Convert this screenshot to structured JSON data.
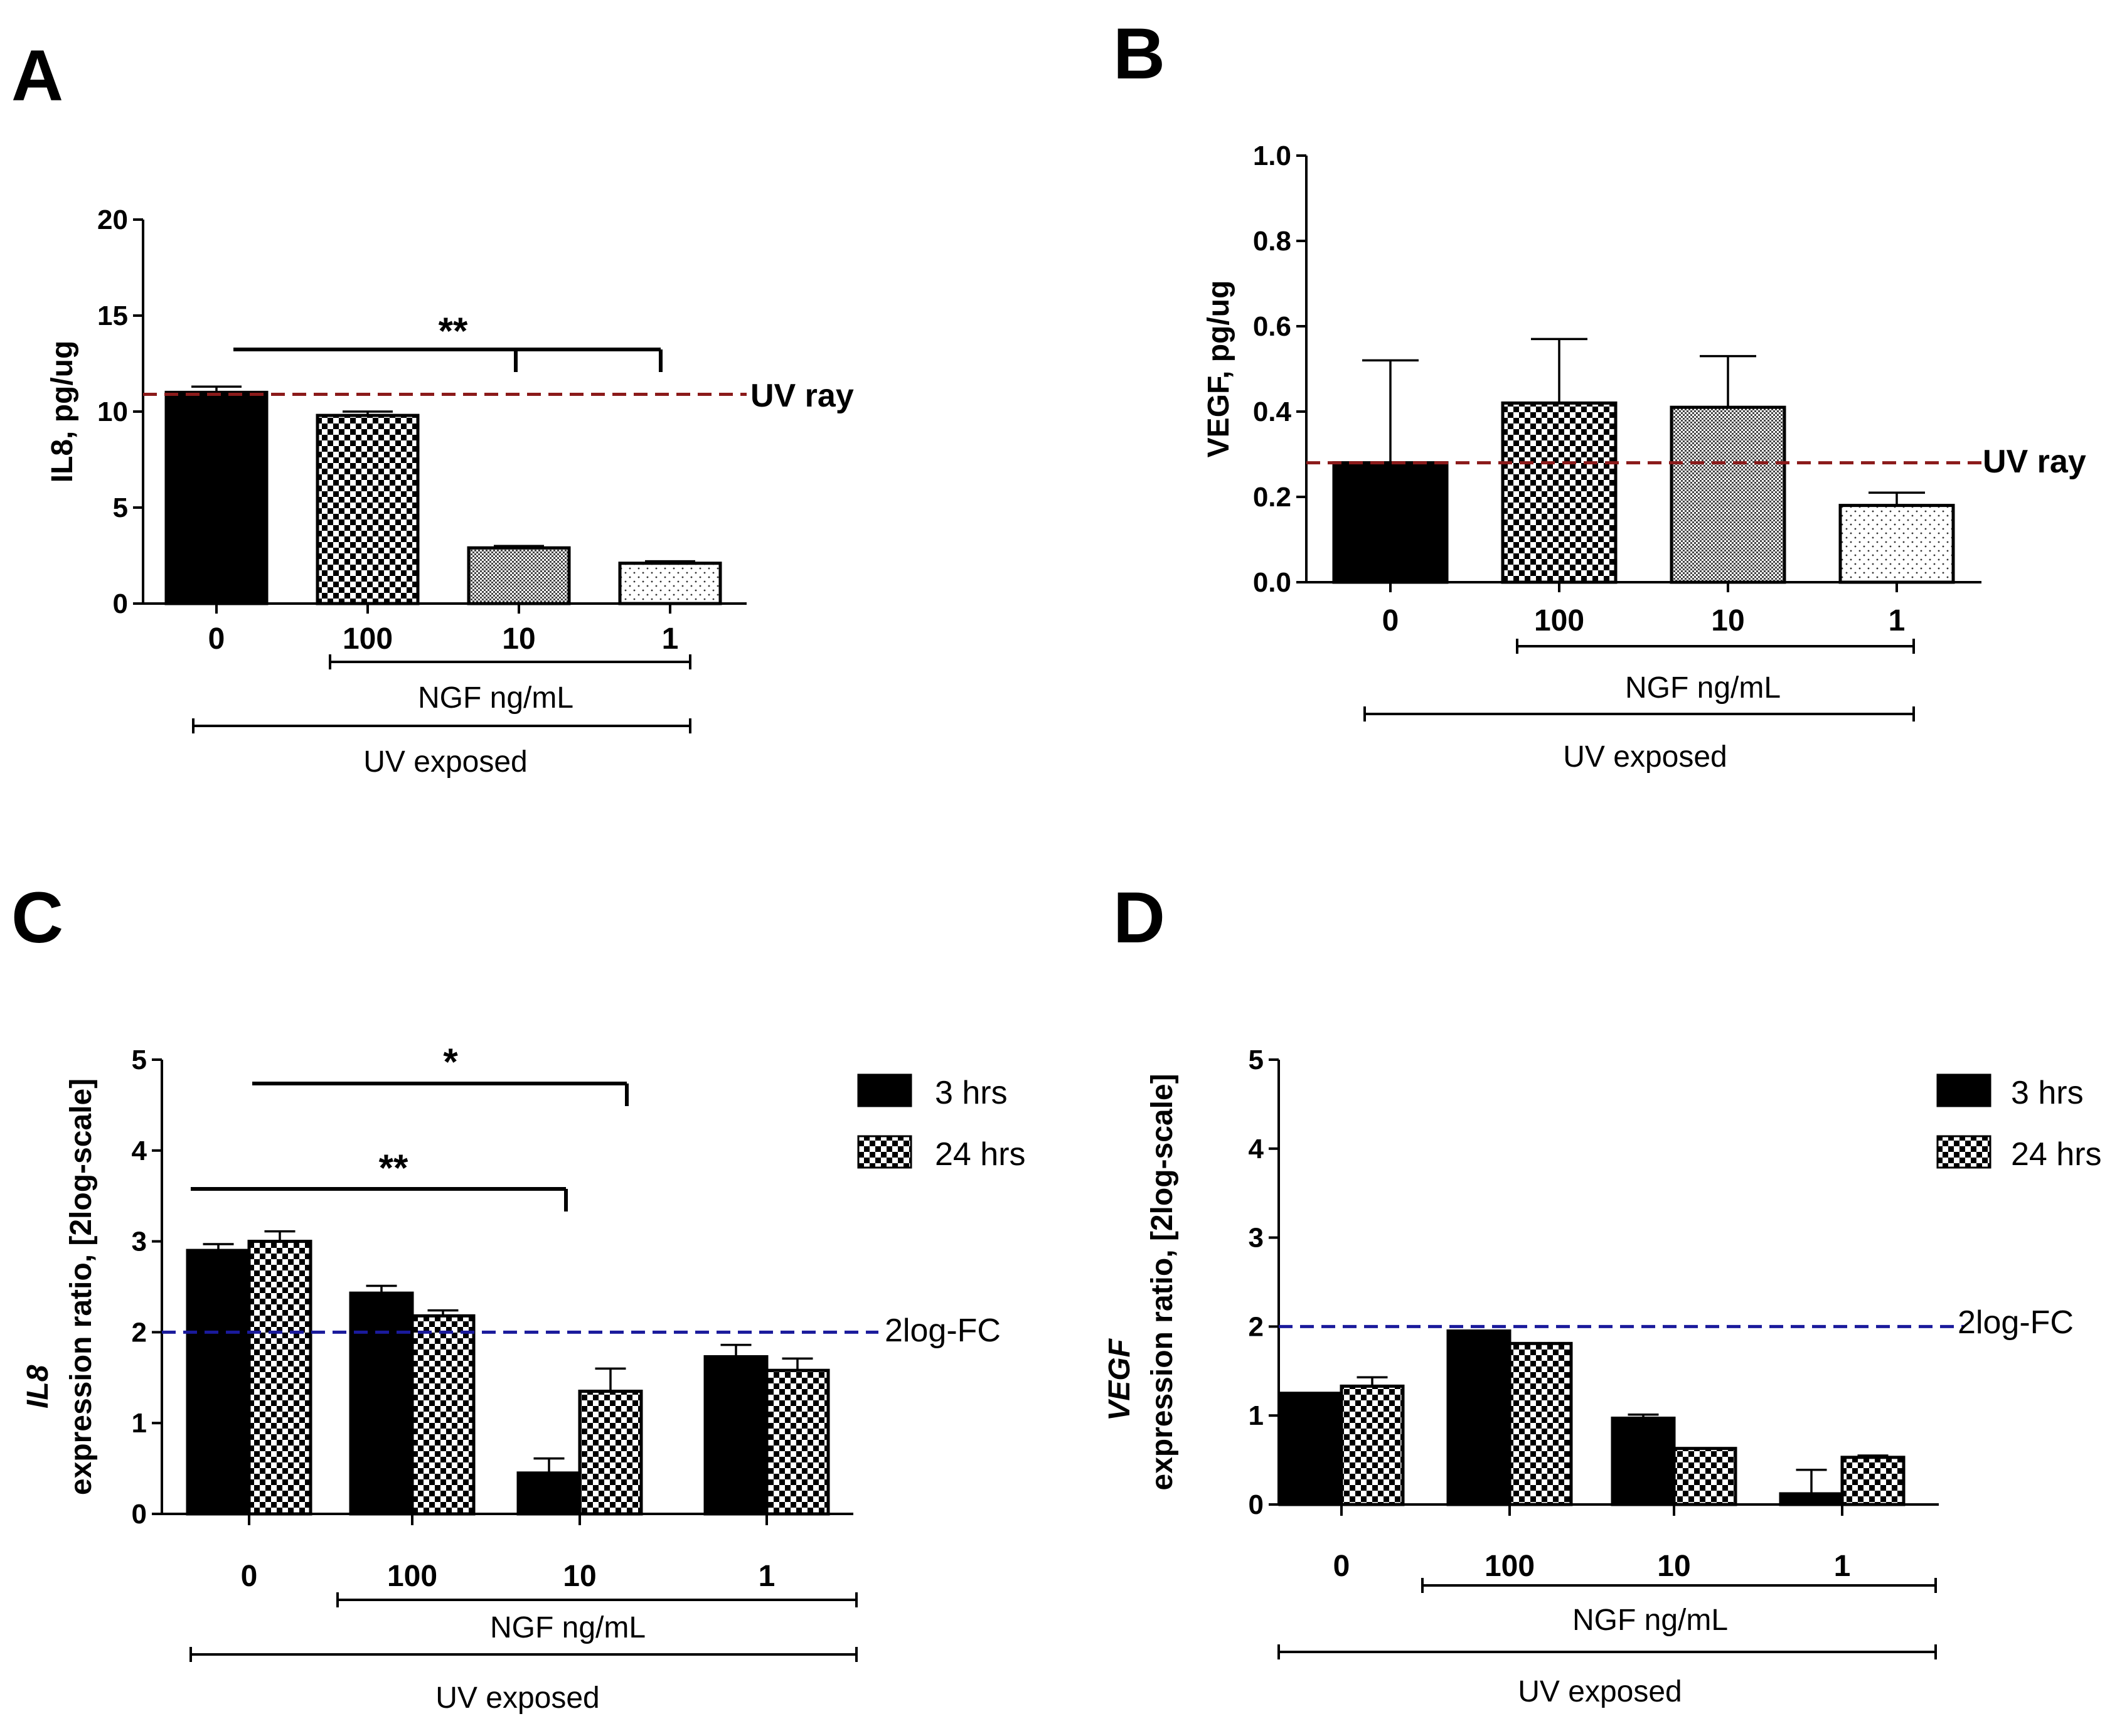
{
  "chart_data": [
    {
      "panel": "A",
      "type": "bar",
      "ylabel": "IL8, pg/ug",
      "ylim": [
        0,
        20
      ],
      "yticks": [
        "0",
        "5",
        "10",
        "15",
        "20"
      ],
      "categories": [
        "0",
        "100",
        "10",
        "1"
      ],
      "series": [
        {
          "name": "IL8",
          "values": [
            11.0,
            9.8,
            2.9,
            2.1
          ],
          "errors": [
            0.3,
            0.2,
            0.1,
            0.1
          ],
          "patterns": [
            "solid",
            "checker",
            "fine",
            "dots"
          ]
        }
      ],
      "reference_line": {
        "value": 10.9,
        "label": "UV ray",
        "color": "#8B1A1A"
      },
      "significance": [
        {
          "label": "**",
          "from": 0,
          "to": [
            2,
            3
          ]
        }
      ],
      "group_labels": {
        "treatment": "NGF ng/mL",
        "exposure": "UV exposed"
      }
    },
    {
      "panel": "B",
      "type": "bar",
      "ylabel": "VEGF, pg/ug",
      "ylim": [
        0,
        1.0
      ],
      "yticks": [
        "0.0",
        "0.2",
        "0.4",
        "0.6",
        "0.8",
        "1.0"
      ],
      "categories": [
        "0",
        "100",
        "10",
        "1"
      ],
      "series": [
        {
          "name": "VEGF",
          "values": [
            0.28,
            0.42,
            0.41,
            0.18
          ],
          "errors": [
            0.24,
            0.15,
            0.12,
            0.03
          ],
          "patterns": [
            "solid",
            "checker",
            "fine",
            "dots"
          ]
        }
      ],
      "reference_line": {
        "value": 0.28,
        "label": "UV ray",
        "color": "#8B1A1A"
      },
      "group_labels": {
        "treatment": "NGF ng/mL",
        "exposure": "UV exposed"
      }
    },
    {
      "panel": "C",
      "type": "bar",
      "ylabel_gene": "IL8",
      "ylabel": "expression ratio, [2log-scale]",
      "ylim": [
        0,
        5
      ],
      "yticks": [
        "0",
        "1",
        "2",
        "3",
        "4",
        "5"
      ],
      "categories": [
        "0",
        "100",
        "10",
        "1"
      ],
      "series": [
        {
          "name": "3 hrs",
          "values": [
            2.9,
            2.43,
            0.45,
            1.73
          ],
          "errors": [
            0.07,
            0.08,
            0.16,
            0.13
          ]
        },
        {
          "name": "24 hrs",
          "values": [
            3.0,
            2.18,
            1.35,
            1.58
          ],
          "errors": [
            0.11,
            0.06,
            0.25,
            0.13
          ]
        }
      ],
      "reference_line": {
        "value": 2.0,
        "label": "2log-FC",
        "color": "#1A1A9C"
      },
      "significance": [
        {
          "label": "*",
          "from": 0,
          "to": 2
        },
        {
          "label": "**",
          "from": 0,
          "to": 2
        }
      ],
      "group_labels": {
        "treatment": "NGF ng/mL",
        "exposure": "UV exposed"
      }
    },
    {
      "panel": "D",
      "type": "bar",
      "ylabel_gene": "VEGF",
      "ylabel": "expression ratio, [2log-scale]",
      "ylim": [
        0,
        5
      ],
      "yticks": [
        "0",
        "1",
        "2",
        "3",
        "4",
        "5"
      ],
      "categories": [
        "0",
        "100",
        "10",
        "1"
      ],
      "series": [
        {
          "name": "3 hrs",
          "values": [
            1.25,
            1.95,
            0.97,
            0.12
          ],
          "errors": [
            0.0,
            0.0,
            0.04,
            0.27
          ]
        },
        {
          "name": "24 hrs",
          "values": [
            1.33,
            1.81,
            0.63,
            0.53
          ],
          "errors": [
            0.1,
            0.0,
            0.0,
            0.02
          ]
        }
      ],
      "reference_line": {
        "value": 2.0,
        "label": "2log-FC",
        "color": "#1A1A9C"
      },
      "group_labels": {
        "treatment": "NGF ng/mL",
        "exposure": "UV exposed"
      }
    }
  ]
}
